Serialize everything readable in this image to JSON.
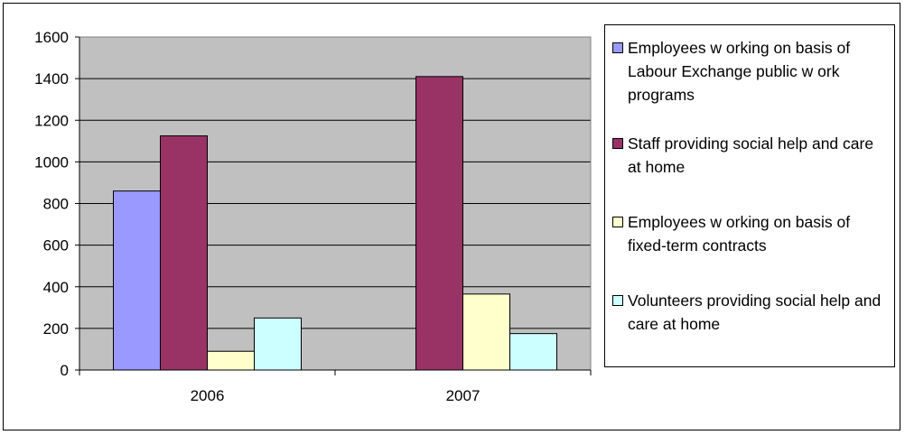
{
  "chart_data": {
    "type": "bar",
    "categories": [
      "2006",
      "2007"
    ],
    "series": [
      {
        "name": "Employees w orking on basis of Labour Exchange public w ork programs",
        "values": [
          860,
          0
        ],
        "color": "#9999ff"
      },
      {
        "name": "Staff providing social help and care at home",
        "values": [
          1125,
          1410
        ],
        "color": "#993366"
      },
      {
        "name": "Employees w orking on basis of fixed-term contracts",
        "values": [
          90,
          365
        ],
        "color": "#ffffcc"
      },
      {
        "name": "Volunteers providing social help and care at home",
        "values": [
          250,
          175
        ],
        "color": "#ccffff"
      }
    ],
    "ylim": [
      0,
      1600
    ],
    "yticks": [
      "0",
      "200",
      "400",
      "600",
      "800",
      "1000",
      "1200",
      "1400",
      "1600"
    ],
    "grid": true,
    "plot_background": "#c0c0c0",
    "legend_position": "right",
    "title": "",
    "xlabel": "",
    "ylabel": ""
  }
}
